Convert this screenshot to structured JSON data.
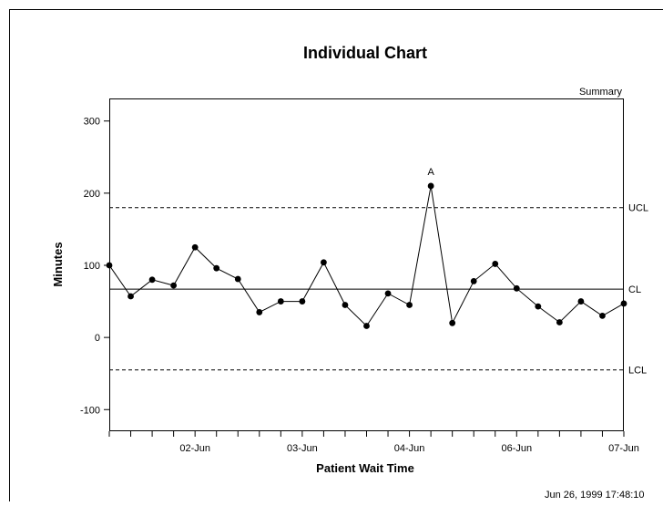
{
  "chart_data": {
    "type": "line",
    "title": "Individual Chart",
    "panel_label": "Summary",
    "xlabel": "Patient Wait Time",
    "ylabel": "Minutes",
    "ylim": [
      -130,
      330
    ],
    "y_ticks": [
      300,
      200,
      100,
      0,
      -100
    ],
    "x_ticks": [
      "02-Jun",
      "03-Jun",
      "04-Jun",
      "06-Jun",
      "07-Jun"
    ],
    "x_tick_positions": [
      4,
      9,
      14,
      19,
      24
    ],
    "grid": false,
    "control_limits": [
      {
        "label": "UCL",
        "value": 180,
        "style": "dashed"
      },
      {
        "label": "CL",
        "value": 67,
        "style": "solid"
      },
      {
        "label": "LCL",
        "value": -45,
        "style": "dashed"
      }
    ],
    "series": [
      {
        "x": [
          0,
          1,
          2,
          3,
          4,
          5,
          6,
          7,
          8,
          9,
          10,
          11,
          12,
          13,
          14,
          15,
          16,
          17,
          18,
          19,
          20,
          21,
          22,
          23,
          24
        ],
        "values": [
          100,
          57,
          80,
          72,
          125,
          96,
          81,
          35,
          50,
          50,
          104,
          45,
          16,
          61,
          45,
          210,
          20,
          78,
          102,
          68,
          43,
          21,
          50,
          30,
          47
        ]
      }
    ],
    "annotations": [
      {
        "text": "A",
        "x": 15
      }
    ]
  },
  "footer": {
    "timestamp": "Jun 26, 1999 17:48:10"
  }
}
